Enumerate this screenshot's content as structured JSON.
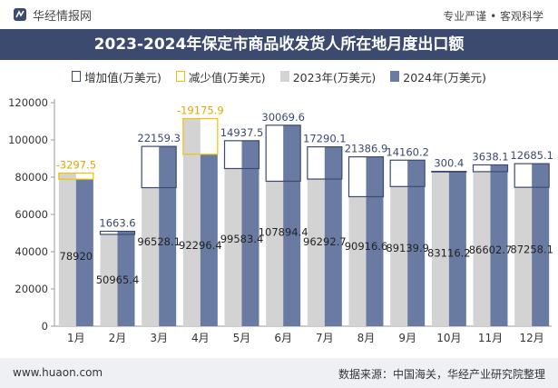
{
  "header": {
    "brand": "华经情报网",
    "tagline": "专业严谨 • 客观科学"
  },
  "footer": {
    "url": "www.huaon.com",
    "source": "数据来源：中国海关，华经产业研究院整理"
  },
  "colors": {
    "title_band": "#3b4a6e",
    "s2023": "#d3d3d3",
    "s2024": "#6a7ba3",
    "increase_border": "#3b4a6e",
    "decrease_border": "#f2c200",
    "decrease_label": "#e8a300",
    "increase_label": "#3b4a6e"
  },
  "chart_data": {
    "type": "bar",
    "title": "2023-2024年保定市商品收发货人所在地月度出口额",
    "legend": {
      "increase": "增加值(万美元)",
      "decrease": "减少值(万美元)",
      "s2023": "2023年(万美元)",
      "s2024": "2024年(万美元)"
    },
    "categories": [
      "1月",
      "2月",
      "3月",
      "4月",
      "5月",
      "6月",
      "7月",
      "8月",
      "9月",
      "10月",
      "11月",
      "12月"
    ],
    "series": [
      {
        "name": "2023年(万美元)",
        "values": [
          82217.5,
          49301.8,
          74368.8,
          111472.3,
          84645.9,
          77824.8,
          79002.6,
          69529.8,
          74979.7,
          82815.9,
          82964.6,
          74573.0
        ]
      },
      {
        "name": "2024年(万美元)",
        "values": [
          78920,
          50965.4,
          96528.1,
          92296.4,
          99583.4,
          107894.4,
          96292.7,
          90916.6,
          89139.9,
          83116.2,
          86602.7,
          87258.1
        ]
      }
    ],
    "change_labels": [
      "-3297.5",
      "1663.6",
      "22159.3",
      "-19175.9",
      "14937.5",
      "30069.6",
      "17290.1",
      "21386.9",
      "14160.2",
      "300.4",
      "3638.1",
      "12685.1"
    ],
    "value_labels": [
      "78920",
      "50965.4",
      "96528.1",
      "92296.4",
      "99583.4",
      "107894.4",
      "96292.7",
      "90916.6",
      "89139.9",
      "83116.2",
      "86602.7",
      "87258.1"
    ],
    "ylim": [
      0,
      120000
    ],
    "yticks": [
      0,
      20000,
      40000,
      60000,
      80000,
      100000,
      120000
    ],
    "ytick_labels": [
      "0",
      "20000",
      "40000",
      "60000",
      "80000",
      "100000",
      "120000"
    ],
    "grid": false,
    "legend_position": "top"
  }
}
